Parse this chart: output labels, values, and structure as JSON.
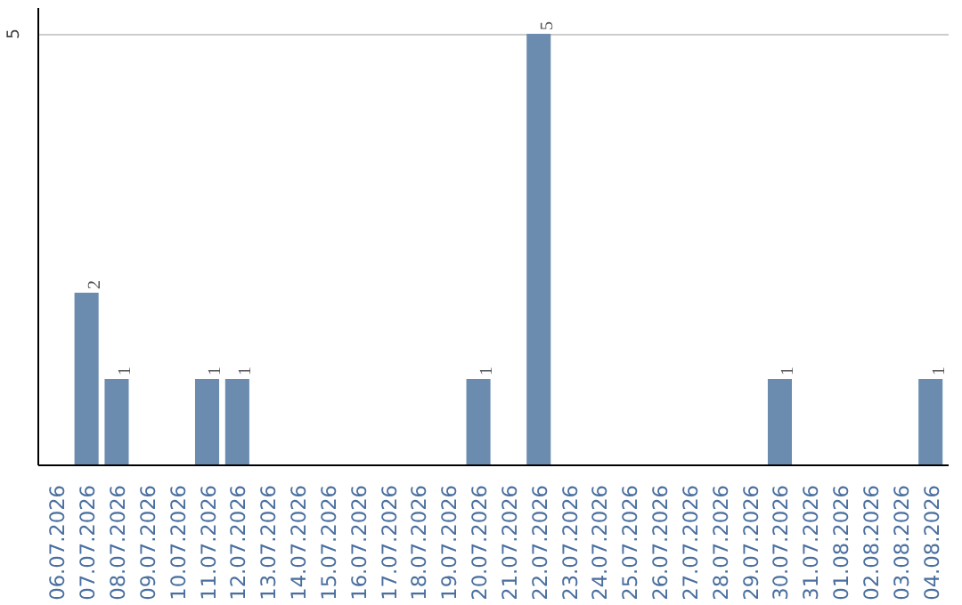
{
  "chart_data": {
    "type": "bar",
    "categories": [
      "06.07.2026",
      "07.07.2026",
      "08.07.2026",
      "09.07.2026",
      "10.07.2026",
      "11.07.2026",
      "12.07.2026",
      "13.07.2026",
      "14.07.2026",
      "15.07.2026",
      "16.07.2026",
      "17.07.2026",
      "18.07.2026",
      "19.07.2026",
      "20.07.2026",
      "21.07.2026",
      "22.07.2026",
      "23.07.2026",
      "24.07.2026",
      "25.07.2026",
      "26.07.2026",
      "27.07.2026",
      "28.07.2026",
      "29.07.2026",
      "30.07.2026",
      "31.07.2026",
      "01.08.2026",
      "02.08.2026",
      "03.08.2026",
      "04.08.2026"
    ],
    "values": [
      0,
      2,
      1,
      0,
      0,
      1,
      1,
      0,
      0,
      0,
      0,
      0,
      0,
      0,
      1,
      0,
      5,
      0,
      0,
      0,
      0,
      0,
      0,
      0,
      1,
      0,
      0,
      0,
      0,
      1
    ],
    "value_labels": [
      null,
      "2",
      "1",
      null,
      null,
      "1",
      "1",
      null,
      null,
      null,
      null,
      null,
      null,
      null,
      "1",
      null,
      "5",
      null,
      null,
      null,
      null,
      null,
      null,
      null,
      "1",
      null,
      null,
      null,
      null,
      "1"
    ],
    "color": "#6b8caf",
    "ylim": [
      0,
      5.3
    ],
    "yticks": [
      5
    ],
    "grid": "y"
  }
}
